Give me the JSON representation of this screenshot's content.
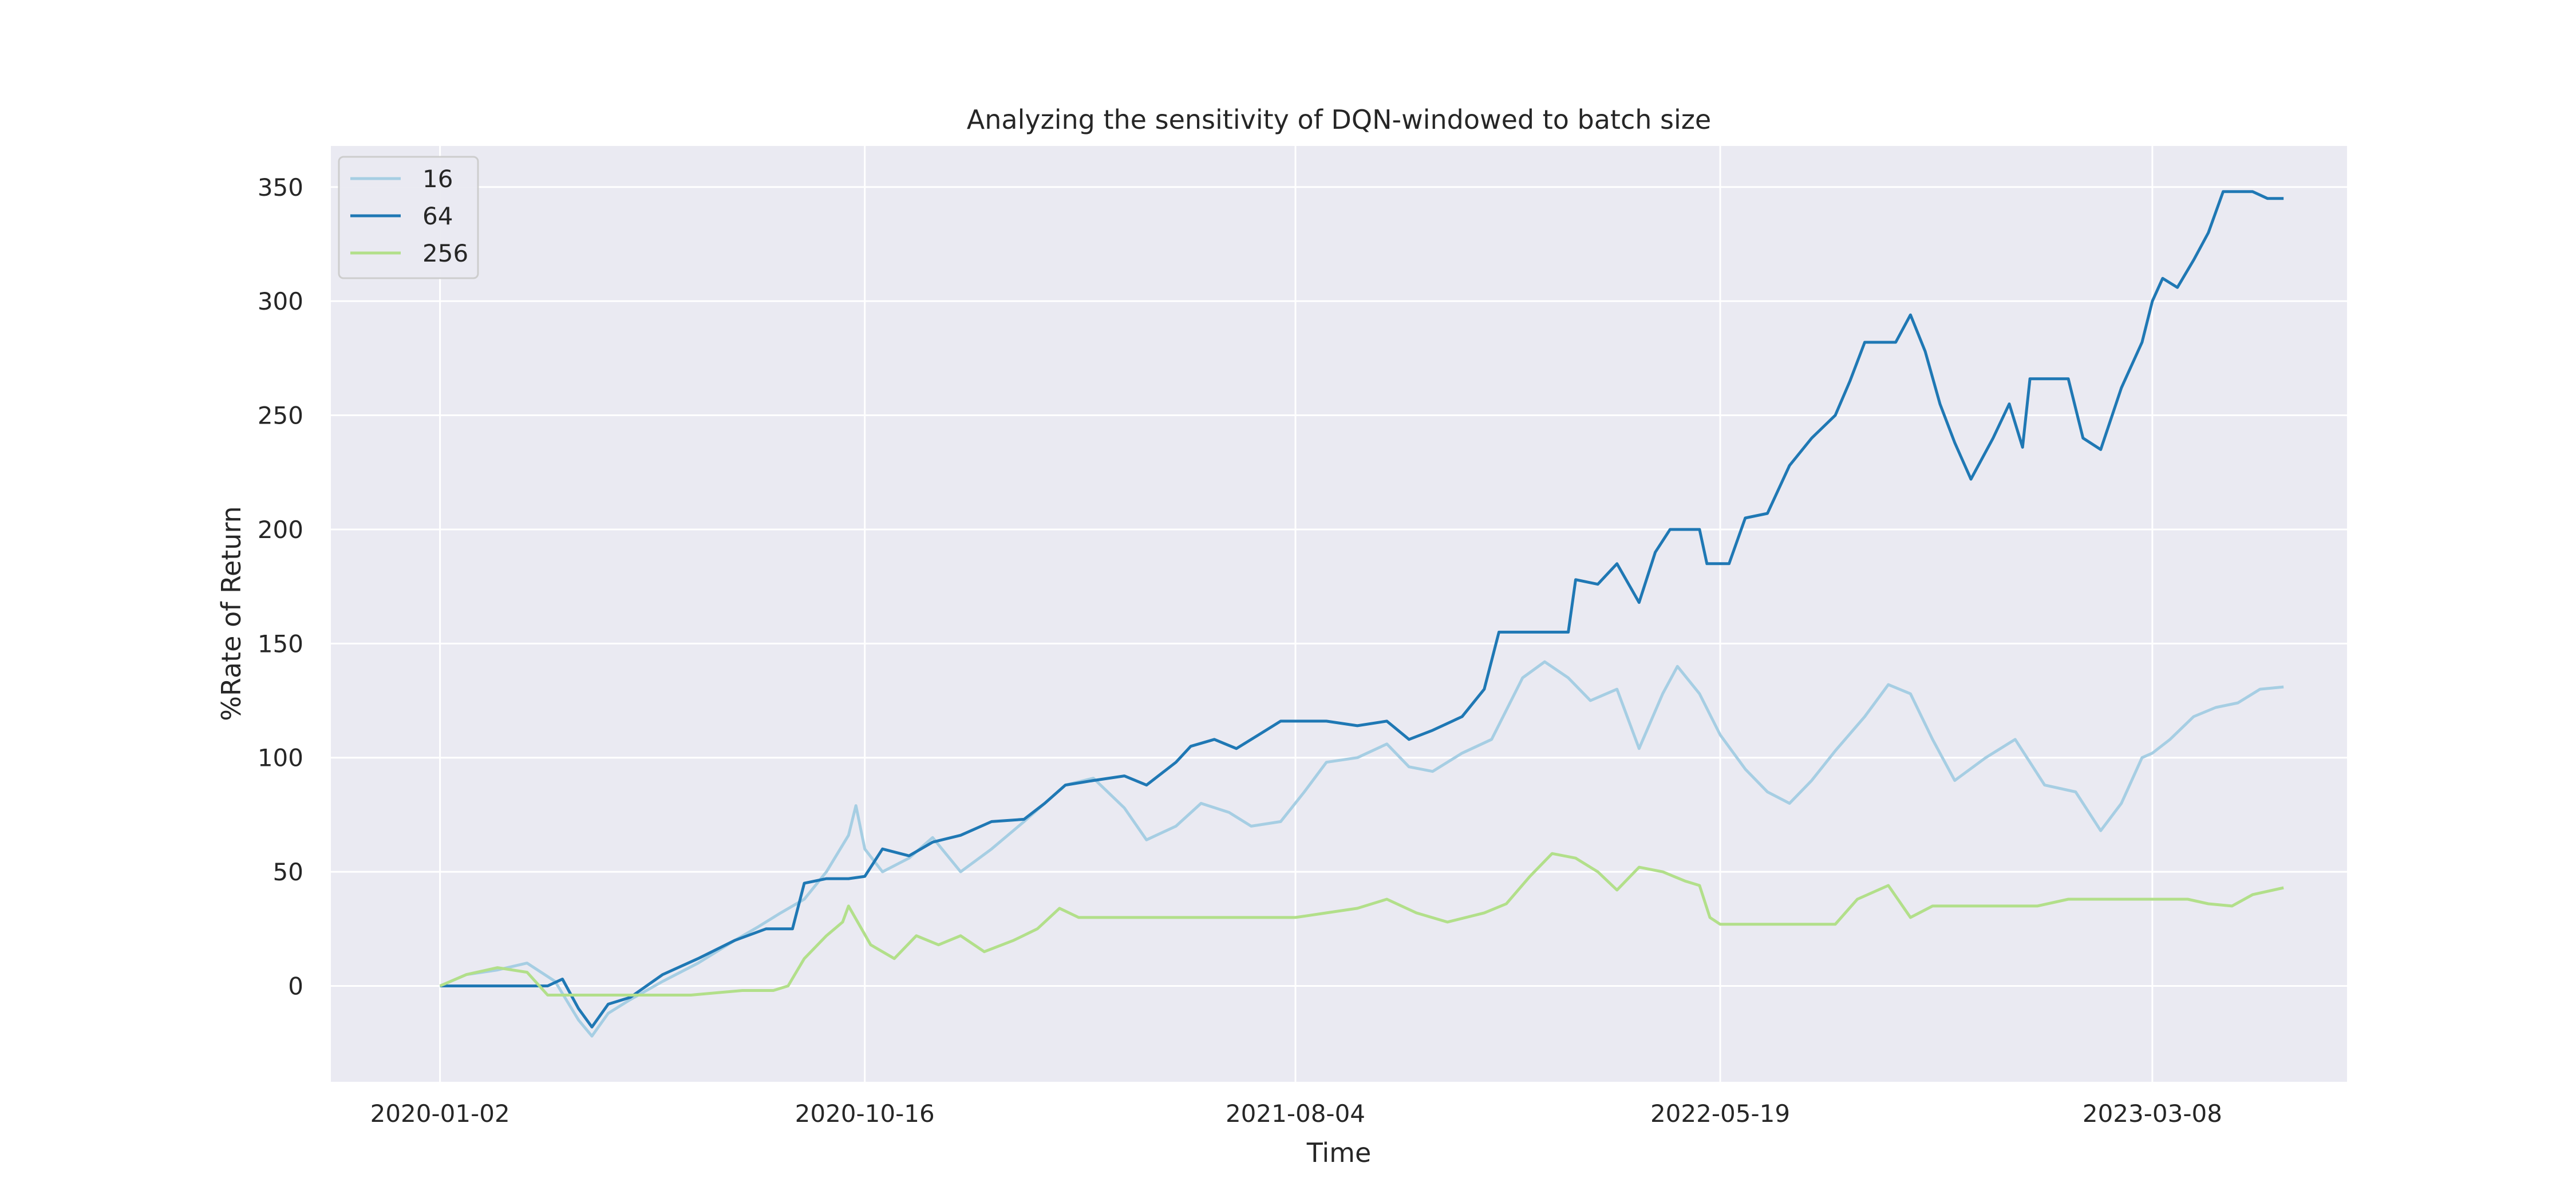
{
  "chart_data": {
    "type": "line",
    "title": "Analyzing the sensitivity of DQN-windowed to batch size",
    "xlabel": "Time",
    "ylabel": "%Rate of Return",
    "xlim": [
      "2019-10-20",
      "2023-07-18"
    ],
    "ylim": [
      -42,
      368
    ],
    "xticks": [
      "2020-01-02",
      "2020-10-16",
      "2021-08-04",
      "2022-05-19",
      "2023-03-08"
    ],
    "yticks": [
      0,
      50,
      100,
      150,
      200,
      250,
      300,
      350
    ],
    "grid": true,
    "legend_position": "top-left",
    "background": "#eaeaf2",
    "grid_color": "#ffffff",
    "series": [
      {
        "name": "16",
        "color": "#a6cee3",
        "points": [
          [
            "2020-01-02",
            0
          ],
          [
            "2020-01-20",
            5
          ],
          [
            "2020-02-10",
            7
          ],
          [
            "2020-03-01",
            10
          ],
          [
            "2020-03-20",
            2
          ],
          [
            "2020-04-05",
            -15
          ],
          [
            "2020-04-14",
            -22
          ],
          [
            "2020-04-25",
            -12
          ],
          [
            "2020-05-10",
            -6
          ],
          [
            "2020-06-01",
            2
          ],
          [
            "2020-06-25",
            10
          ],
          [
            "2020-07-20",
            20
          ],
          [
            "2020-08-05",
            26
          ],
          [
            "2020-08-20",
            32
          ],
          [
            "2020-09-05",
            38
          ],
          [
            "2020-09-20",
            50
          ],
          [
            "2020-10-05",
            66
          ],
          [
            "2020-10-10",
            79
          ],
          [
            "2020-10-16",
            60
          ],
          [
            "2020-10-28",
            50
          ],
          [
            "2020-11-15",
            56
          ],
          [
            "2020-12-01",
            65
          ],
          [
            "2020-12-20",
            50
          ],
          [
            "2021-01-10",
            60
          ],
          [
            "2021-02-01",
            72
          ],
          [
            "2021-02-15",
            80
          ],
          [
            "2021-03-01",
            88
          ],
          [
            "2021-03-20",
            91
          ],
          [
            "2021-04-10",
            78
          ],
          [
            "2021-04-25",
            64
          ],
          [
            "2021-05-15",
            70
          ],
          [
            "2021-06-01",
            80
          ],
          [
            "2021-06-20",
            76
          ],
          [
            "2021-07-05",
            70
          ],
          [
            "2021-07-25",
            72
          ],
          [
            "2021-08-10",
            85
          ],
          [
            "2021-08-25",
            98
          ],
          [
            "2021-09-15",
            100
          ],
          [
            "2021-10-05",
            106
          ],
          [
            "2021-10-20",
            96
          ],
          [
            "2021-11-05",
            94
          ],
          [
            "2021-11-25",
            102
          ],
          [
            "2021-12-15",
            108
          ],
          [
            "2022-01-05",
            135
          ],
          [
            "2022-01-20",
            142
          ],
          [
            "2022-02-05",
            135
          ],
          [
            "2022-02-20",
            125
          ],
          [
            "2022-03-10",
            130
          ],
          [
            "2022-03-25",
            104
          ],
          [
            "2022-04-10",
            128
          ],
          [
            "2022-04-20",
            140
          ],
          [
            "2022-05-05",
            128
          ],
          [
            "2022-05-19",
            110
          ],
          [
            "2022-06-05",
            95
          ],
          [
            "2022-06-20",
            85
          ],
          [
            "2022-07-05",
            80
          ],
          [
            "2022-07-20",
            90
          ],
          [
            "2022-08-05",
            103
          ],
          [
            "2022-08-25",
            118
          ],
          [
            "2022-09-10",
            132
          ],
          [
            "2022-09-25",
            128
          ],
          [
            "2022-10-10",
            108
          ],
          [
            "2022-10-25",
            90
          ],
          [
            "2022-11-15",
            100
          ],
          [
            "2022-12-05",
            108
          ],
          [
            "2022-12-25",
            88
          ],
          [
            "2023-01-15",
            85
          ],
          [
            "2023-02-01",
            68
          ],
          [
            "2023-02-15",
            80
          ],
          [
            "2023-03-01",
            100
          ],
          [
            "2023-03-08",
            102
          ],
          [
            "2023-03-20",
            108
          ],
          [
            "2023-04-05",
            118
          ],
          [
            "2023-04-20",
            122
          ],
          [
            "2023-05-05",
            124
          ],
          [
            "2023-05-20",
            130
          ],
          [
            "2023-06-05",
            131
          ]
        ]
      },
      {
        "name": "64",
        "color": "#1f78b4",
        "points": [
          [
            "2020-01-02",
            0
          ],
          [
            "2020-02-10",
            0
          ],
          [
            "2020-03-15",
            0
          ],
          [
            "2020-03-25",
            3
          ],
          [
            "2020-04-05",
            -10
          ],
          [
            "2020-04-14",
            -18
          ],
          [
            "2020-04-25",
            -8
          ],
          [
            "2020-05-10",
            -5
          ],
          [
            "2020-06-01",
            5
          ],
          [
            "2020-06-25",
            12
          ],
          [
            "2020-07-20",
            20
          ],
          [
            "2020-08-10",
            25
          ],
          [
            "2020-08-28",
            25
          ],
          [
            "2020-09-05",
            45
          ],
          [
            "2020-09-20",
            47
          ],
          [
            "2020-10-05",
            47
          ],
          [
            "2020-10-16",
            48
          ],
          [
            "2020-10-28",
            60
          ],
          [
            "2020-11-15",
            57
          ],
          [
            "2020-12-01",
            63
          ],
          [
            "2020-12-20",
            66
          ],
          [
            "2021-01-10",
            72
          ],
          [
            "2021-02-01",
            73
          ],
          [
            "2021-02-15",
            80
          ],
          [
            "2021-03-01",
            88
          ],
          [
            "2021-03-20",
            90
          ],
          [
            "2021-04-10",
            92
          ],
          [
            "2021-04-25",
            88
          ],
          [
            "2021-05-15",
            98
          ],
          [
            "2021-05-25",
            105
          ],
          [
            "2021-06-10",
            108
          ],
          [
            "2021-06-25",
            104
          ],
          [
            "2021-07-10",
            110
          ],
          [
            "2021-07-25",
            116
          ],
          [
            "2021-08-04",
            116
          ],
          [
            "2021-08-25",
            116
          ],
          [
            "2021-09-15",
            114
          ],
          [
            "2021-10-05",
            116
          ],
          [
            "2021-10-20",
            108
          ],
          [
            "2021-11-05",
            112
          ],
          [
            "2021-11-25",
            118
          ],
          [
            "2021-12-10",
            130
          ],
          [
            "2021-12-20",
            155
          ],
          [
            "2022-01-15",
            155
          ],
          [
            "2022-02-05",
            155
          ],
          [
            "2022-02-10",
            178
          ],
          [
            "2022-02-25",
            176
          ],
          [
            "2022-03-10",
            185
          ],
          [
            "2022-03-25",
            168
          ],
          [
            "2022-04-05",
            190
          ],
          [
            "2022-04-15",
            200
          ],
          [
            "2022-05-05",
            200
          ],
          [
            "2022-05-10",
            185
          ],
          [
            "2022-05-25",
            185
          ],
          [
            "2022-06-05",
            205
          ],
          [
            "2022-06-20",
            207
          ],
          [
            "2022-07-05",
            228
          ],
          [
            "2022-07-20",
            240
          ],
          [
            "2022-08-05",
            250
          ],
          [
            "2022-08-15",
            265
          ],
          [
            "2022-08-25",
            282
          ],
          [
            "2022-09-15",
            282
          ],
          [
            "2022-09-25",
            294
          ],
          [
            "2022-10-05",
            278
          ],
          [
            "2022-10-15",
            255
          ],
          [
            "2022-10-25",
            238
          ],
          [
            "2022-11-05",
            222
          ],
          [
            "2022-11-20",
            240
          ],
          [
            "2022-12-01",
            255
          ],
          [
            "2022-12-10",
            236
          ],
          [
            "2022-12-15",
            266
          ],
          [
            "2023-01-10",
            266
          ],
          [
            "2023-01-20",
            240
          ],
          [
            "2023-02-01",
            235
          ],
          [
            "2023-02-15",
            262
          ],
          [
            "2023-03-01",
            282
          ],
          [
            "2023-03-08",
            300
          ],
          [
            "2023-03-15",
            310
          ],
          [
            "2023-03-25",
            306
          ],
          [
            "2023-04-05",
            318
          ],
          [
            "2023-04-15",
            330
          ],
          [
            "2023-04-25",
            348
          ],
          [
            "2023-05-15",
            348
          ],
          [
            "2023-05-25",
            345
          ],
          [
            "2023-06-05",
            345
          ]
        ]
      },
      {
        "name": "256",
        "color": "#b2df8a",
        "points": [
          [
            "2020-01-02",
            0
          ],
          [
            "2020-01-20",
            5
          ],
          [
            "2020-02-10",
            8
          ],
          [
            "2020-03-01",
            6
          ],
          [
            "2020-03-15",
            -4
          ],
          [
            "2020-04-10",
            -4
          ],
          [
            "2020-05-10",
            -4
          ],
          [
            "2020-06-20",
            -4
          ],
          [
            "2020-07-25",
            -2
          ],
          [
            "2020-08-15",
            -2
          ],
          [
            "2020-08-25",
            0
          ],
          [
            "2020-09-05",
            12
          ],
          [
            "2020-09-20",
            22
          ],
          [
            "2020-10-01",
            28
          ],
          [
            "2020-10-05",
            35
          ],
          [
            "2020-10-20",
            18
          ],
          [
            "2020-11-05",
            12
          ],
          [
            "2020-11-20",
            22
          ],
          [
            "2020-12-05",
            18
          ],
          [
            "2020-12-20",
            22
          ],
          [
            "2021-01-05",
            15
          ],
          [
            "2021-01-25",
            20
          ],
          [
            "2021-02-10",
            25
          ],
          [
            "2021-02-25",
            34
          ],
          [
            "2021-03-10",
            30
          ],
          [
            "2021-05-01",
            30
          ],
          [
            "2021-06-20",
            30
          ],
          [
            "2021-08-04",
            30
          ],
          [
            "2021-08-25",
            32
          ],
          [
            "2021-09-15",
            34
          ],
          [
            "2021-10-05",
            38
          ],
          [
            "2021-10-25",
            32
          ],
          [
            "2021-11-15",
            28
          ],
          [
            "2021-12-10",
            32
          ],
          [
            "2021-12-25",
            36
          ],
          [
            "2022-01-10",
            48
          ],
          [
            "2022-01-25",
            58
          ],
          [
            "2022-02-10",
            56
          ],
          [
            "2022-02-25",
            50
          ],
          [
            "2022-03-10",
            42
          ],
          [
            "2022-03-25",
            52
          ],
          [
            "2022-04-10",
            50
          ],
          [
            "2022-04-25",
            46
          ],
          [
            "2022-05-05",
            44
          ],
          [
            "2022-05-12",
            30
          ],
          [
            "2022-05-19",
            27
          ],
          [
            "2022-06-10",
            27
          ],
          [
            "2022-07-10",
            27
          ],
          [
            "2022-08-05",
            27
          ],
          [
            "2022-08-20",
            38
          ],
          [
            "2022-09-10",
            44
          ],
          [
            "2022-09-25",
            30
          ],
          [
            "2022-10-10",
            35
          ],
          [
            "2022-11-15",
            35
          ],
          [
            "2022-12-20",
            35
          ],
          [
            "2023-01-10",
            38
          ],
          [
            "2023-02-15",
            38
          ],
          [
            "2023-03-08",
            38
          ],
          [
            "2023-04-01",
            38
          ],
          [
            "2023-04-15",
            36
          ],
          [
            "2023-05-01",
            35
          ],
          [
            "2023-05-15",
            40
          ],
          [
            "2023-06-05",
            43
          ]
        ]
      }
    ]
  }
}
